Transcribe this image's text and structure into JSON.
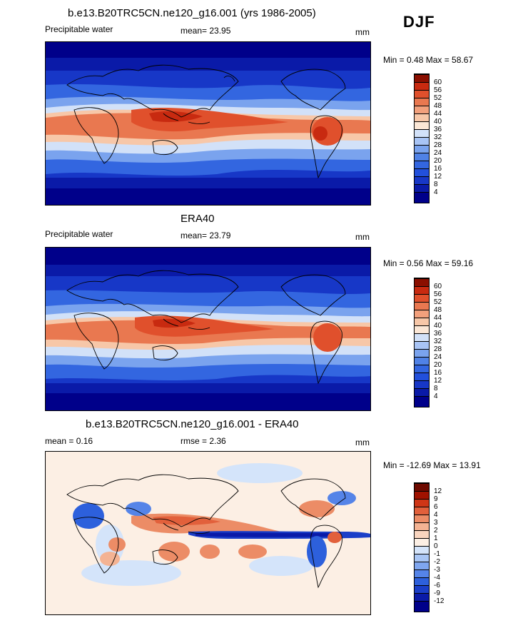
{
  "season": "DJF",
  "panels": [
    {
      "title": "b.e13.B20TRC5CN.ne120_g16.001 (yrs 1986-2005)",
      "left_label": "Precipitable water",
      "mean_text": "mean=  23.95",
      "units": "mm",
      "minmax": "Min =   0.48 Max =  58.67",
      "colorbar_labels": [
        "60",
        "56",
        "52",
        "48",
        "44",
        "40",
        "36",
        "32",
        "28",
        "24",
        "20",
        "16",
        "12",
        "8",
        "4"
      ]
    },
    {
      "title": "ERA40",
      "left_label": "Precipitable water",
      "mean_text": "mean=  23.79",
      "units": "mm",
      "minmax": "Min =   0.56 Max =  59.16",
      "colorbar_labels": [
        "60",
        "56",
        "52",
        "48",
        "44",
        "40",
        "36",
        "32",
        "28",
        "24",
        "20",
        "16",
        "12",
        "8",
        "4"
      ]
    },
    {
      "title": "b.e13.B20TRC5CN.ne120_g16.001 - ERA40",
      "left_label": "mean =   0.16",
      "mean_text": "rmse =   2.36",
      "units": "mm",
      "minmax": "Min = -12.69 Max =  13.91",
      "colorbar_labels": [
        "12",
        "9",
        "6",
        "4",
        "3",
        "2",
        "1",
        "0",
        "-1",
        "-2",
        "-3",
        "-4",
        "-6",
        "-9",
        "-12"
      ]
    }
  ],
  "chart_data": {
    "type": "heatmap",
    "colors": {
      "abs_scale": [
        "#00008a",
        "#0a1aa8",
        "#1737c7",
        "#2250dc",
        "#3366e0",
        "#5082e6",
        "#7aa3ee",
        "#a8c4f5",
        "#d2e1f8",
        "#fbe7d6",
        "#f7c7a8",
        "#f2a07c",
        "#e97850",
        "#e0502c",
        "#c82a10",
        "#8b0f00"
      ],
      "diff_scale": [
        "#00008a",
        "#0a1aa8",
        "#1a3ec8",
        "#2d60dc",
        "#5584e8",
        "#7fa6ef",
        "#a9c6f5",
        "#d4e4fa",
        "#fcefe4",
        "#f9d5bf",
        "#f4b393",
        "#ec8c66",
        "#e2603b",
        "#cf3616",
        "#a01200",
        "#6e0a00"
      ]
    },
    "fields": [
      "model precipitable water DJF",
      "ERA40 precipitable water DJF",
      "model minus ERA40"
    ]
  }
}
